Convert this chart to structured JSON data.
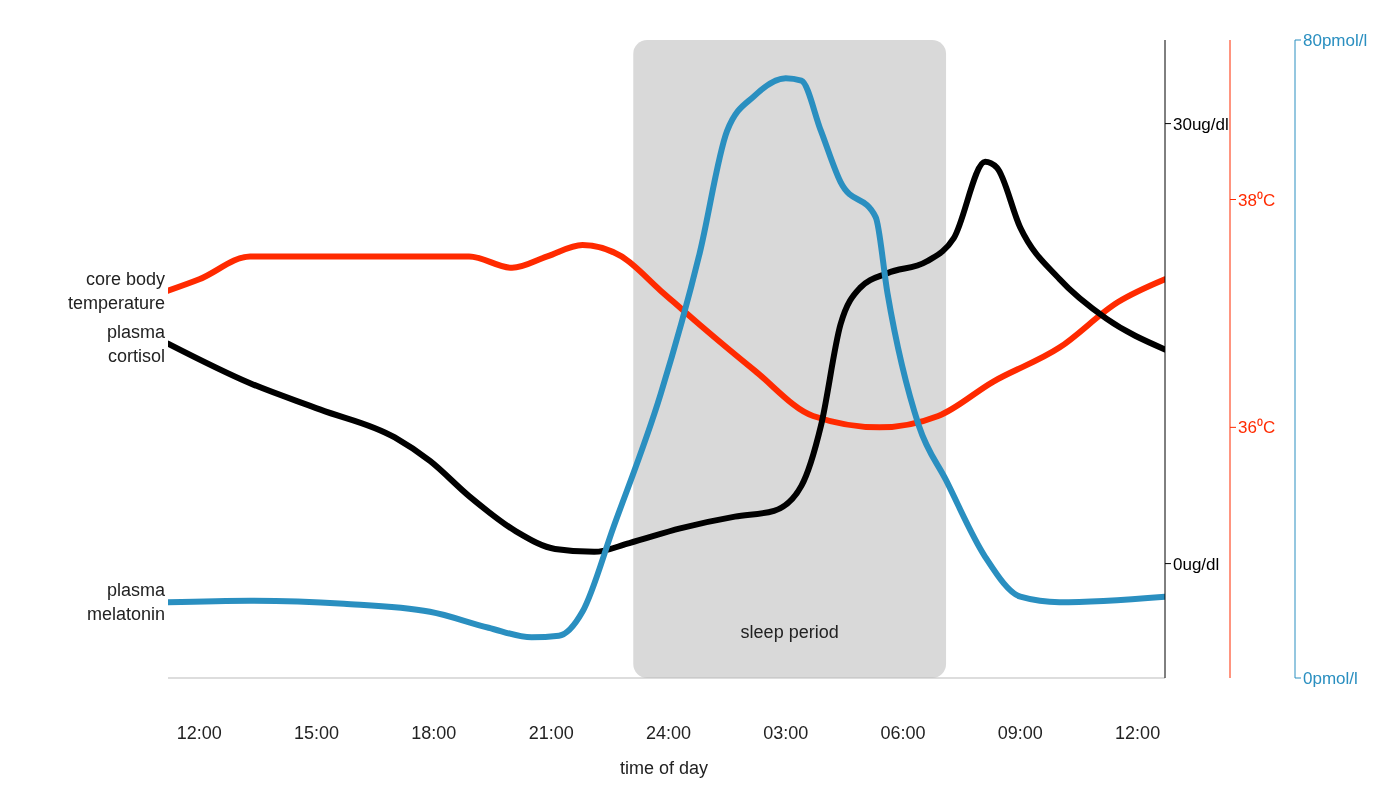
{
  "chart_data": {
    "type": "line",
    "xlabel": "time of day",
    "xlim": [
      "2000-01-01T11:12",
      "2000-01-02T12:42"
    ],
    "xticks": [
      {
        "value": "2000-01-01T12:00",
        "label": "12:00"
      },
      {
        "value": "2000-01-01T15:00",
        "label": "15:00"
      },
      {
        "value": "2000-01-01T18:00",
        "label": "18:00"
      },
      {
        "value": "2000-01-01T21:00",
        "label": "21:00"
      },
      {
        "value": "2000-01-02T00:00",
        "label": "24:00"
      },
      {
        "value": "2000-01-02T03:00",
        "label": "03:00"
      },
      {
        "value": "2000-01-02T06:00",
        "label": "06:00"
      },
      {
        "value": "2000-01-02T09:00",
        "label": "09:00"
      },
      {
        "value": "2000-01-02T12:00",
        "label": "12:00"
      }
    ],
    "ylim": [
      -7.8,
      35.7
    ],
    "yticks": [
      {
        "value": 0,
        "label": "0ug/dl"
      },
      {
        "value": 30,
        "label": "30ug/dl"
      }
    ],
    "y2lim": [
      33.8,
      39.4
    ],
    "y2ticks": [
      {
        "value": 36,
        "label": "36⁰C"
      },
      {
        "value": 38,
        "label": "38⁰C"
      }
    ],
    "y3lim": [
      0,
      80
    ],
    "y3ticks": [
      {
        "value": 0,
        "label": "0pmol/l"
      },
      {
        "value": 80,
        "label": "80pmol/l"
      }
    ],
    "bands": [
      {
        "axis": "x",
        "from": "2000-01-01T23:06",
        "to": "2000-01-02T07:06",
        "label": "sleep period",
        "color": "#d9d9d9"
      }
    ],
    "grid": false,
    "marker": "none",
    "line_style": "solid",
    "series": [
      {
        "name": "core body temperature",
        "color": "#ff2a00",
        "axis": "y2",
        "x": [
          "2000-01-01T11:12",
          "2000-01-01T12:00",
          "2000-01-01T13:18",
          "2000-01-01T15:06",
          "2000-01-01T17:00",
          "2000-01-01T18:54",
          "2000-01-01T20:00",
          "2000-01-01T20:54",
          "2000-01-01T21:48",
          "2000-01-01T22:48",
          "2000-01-01T23:48",
          "2000-01-02T00:48",
          "2000-01-02T02:12",
          "2000-01-02T03:42",
          "2000-01-02T05:24",
          "2000-01-02T06:54",
          "2000-01-02T08:18",
          "2000-01-02T10:00",
          "2000-01-02T11:30",
          "2000-01-02T12:42"
        ],
        "values": [
          37.2,
          37.3,
          37.5,
          37.5,
          37.5,
          37.5,
          37.4,
          37.5,
          37.6,
          37.5,
          37.2,
          36.9,
          36.5,
          36.1,
          36.0,
          36.1,
          36.4,
          36.7,
          37.1,
          37.3
        ]
      },
      {
        "name": "plasma cortisol",
        "color": "#000000",
        "axis": "y",
        "x": [
          "2000-01-01T11:12",
          "2000-01-01T13:18",
          "2000-01-01T15:06",
          "2000-01-01T17:00",
          "2000-01-01T17:54",
          "2000-01-01T18:54",
          "2000-01-01T20:06",
          "2000-01-01T21:06",
          "2000-01-01T22:06",
          "2000-01-01T23:00",
          "2000-01-02T00:18",
          "2000-01-02T01:42",
          "2000-01-02T02:42",
          "2000-01-02T03:24",
          "2000-01-02T03:54",
          "2000-01-02T04:24",
          "2000-01-02T04:54",
          "2000-01-02T05:36",
          "2000-01-02T06:36",
          "2000-01-02T07:18",
          "2000-01-02T08:06",
          "2000-01-02T08:24",
          "2000-01-02T09:00",
          "2000-01-02T10:00",
          "2000-01-02T11:12",
          "2000-01-02T12:42"
        ],
        "values": [
          15.0,
          12.3,
          10.5,
          8.6,
          7.0,
          4.6,
          2.2,
          1.0,
          0.8,
          1.4,
          2.4,
          3.2,
          3.6,
          5.3,
          9.4,
          16.3,
          18.8,
          19.8,
          20.6,
          22.2,
          27.4,
          27.0,
          22.9,
          19.4,
          16.7,
          14.6
        ]
      },
      {
        "name": "plasma melatonin",
        "color": "#2a8fc0",
        "axis": "y3",
        "x": [
          "2000-01-01T11:12",
          "2000-01-01T13:18",
          "2000-01-01T15:42",
          "2000-01-01T17:54",
          "2000-01-01T19:24",
          "2000-01-01T20:30",
          "2000-01-01T21:12",
          "2000-01-01T21:48",
          "2000-01-01T22:36",
          "2000-01-01T23:48",
          "2000-01-02T00:48",
          "2000-01-02T01:30",
          "2000-01-02T02:12",
          "2000-01-02T03:00",
          "2000-01-02T03:24",
          "2000-01-02T03:54",
          "2000-01-02T04:24",
          "2000-01-02T05:18",
          "2000-01-02T05:36",
          "2000-01-02T06:24",
          "2000-01-02T07:06",
          "2000-01-02T08:06",
          "2000-01-02T09:00",
          "2000-01-02T10:00",
          "2000-01-02T12:42"
        ],
        "values": [
          9.5,
          9.7,
          9.3,
          8.3,
          6.3,
          5.1,
          5.3,
          8.3,
          19,
          35.6,
          53.3,
          68.6,
          73,
          75.2,
          74.9,
          68.6,
          62.2,
          57.8,
          48.3,
          31.7,
          24.8,
          15.2,
          10.2,
          9.5,
          10.2
        ]
      }
    ]
  }
}
